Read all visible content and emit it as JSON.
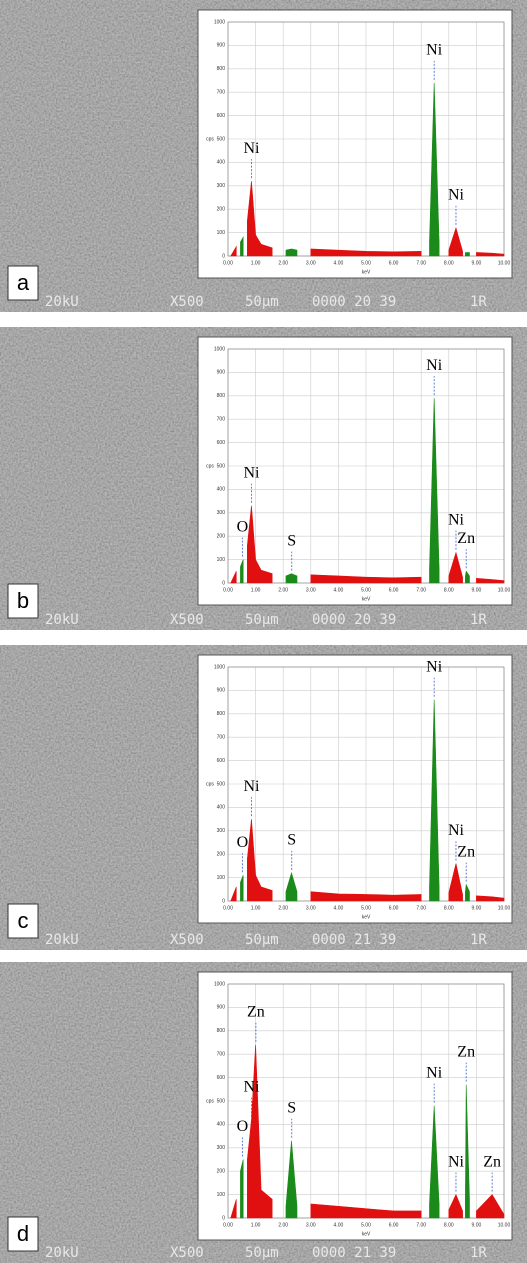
{
  "chart_data": [
    {
      "type": "spectrum",
      "panel": "a",
      "footer": [
        "20kU",
        "X500",
        "50µm",
        "0000 20 39",
        "1R"
      ],
      "xlabel": "keV",
      "ylabel": "cps",
      "xlim": [
        0,
        10
      ],
      "ylim": [
        0,
        1000
      ],
      "xticks": [
        {
          "value": 0,
          "label": "0.00"
        },
        {
          "value": 1,
          "label": "1.00"
        },
        {
          "value": 2,
          "label": "2.00"
        },
        {
          "value": 3,
          "label": "3.00"
        },
        {
          "value": 4,
          "label": "4.00"
        },
        {
          "value": 5,
          "label": "5.00"
        },
        {
          "value": 6,
          "label": "6.00"
        },
        {
          "value": 7,
          "label": "7.00"
        },
        {
          "value": 8,
          "label": "8.00"
        },
        {
          "value": 9,
          "label": "9.00"
        },
        {
          "value": 10,
          "label": "10.00"
        }
      ],
      "yticks": [
        0,
        100,
        200,
        300,
        400,
        500,
        600,
        700,
        800,
        900,
        1000
      ],
      "grid": true,
      "x": [
        0.1,
        0.3,
        0.45,
        0.55,
        0.7,
        0.85,
        1.0,
        1.2,
        1.6,
        2.1,
        2.3,
        2.5,
        3.0,
        4.0,
        5.0,
        6.0,
        7.0,
        7.3,
        7.47,
        7.65,
        8.0,
        8.26,
        8.5,
        8.6,
        8.63,
        8.75,
        9.0,
        9.57,
        10.0
      ],
      "series": [
        {
          "color": "#e01010",
          "values": [
            0,
            40,
            null,
            null,
            150,
            320,
            90,
            50,
            35,
            null,
            null,
            null,
            30,
            25,
            20,
            18,
            20,
            null,
            null,
            null,
            25,
            120,
            20,
            null,
            null,
            null,
            15,
            12,
            8
          ]
        },
        {
          "color": "#1a8a1a",
          "values": [
            null,
            null,
            60,
            80,
            null,
            null,
            null,
            null,
            null,
            25,
            30,
            25,
            null,
            null,
            null,
            null,
            null,
            60,
            740,
            60,
            null,
            null,
            null,
            15,
            15,
            15,
            null,
            null,
            null
          ]
        }
      ],
      "annotations": [
        {
          "text": "Ni",
          "x": 0.85
        },
        {
          "text": "Ni",
          "x": 7.47
        },
        {
          "text": "Ni",
          "x": 8.26
        }
      ]
    },
    {
      "type": "spectrum",
      "panel": "b",
      "footer": [
        "20kU",
        "X500",
        "50µm",
        "0000 20 39",
        "1R"
      ],
      "xlabel": "keV",
      "ylabel": "cps",
      "xlim": [
        0,
        10
      ],
      "ylim": [
        0,
        1000
      ],
      "xticks": [
        {
          "value": 0,
          "label": "0.00"
        },
        {
          "value": 1,
          "label": "1.00"
        },
        {
          "value": 2,
          "label": "2.00"
        },
        {
          "value": 3,
          "label": "3.00"
        },
        {
          "value": 4,
          "label": "4.00"
        },
        {
          "value": 5,
          "label": "5.00"
        },
        {
          "value": 6,
          "label": "6.00"
        },
        {
          "value": 7,
          "label": "7.00"
        },
        {
          "value": 8,
          "label": "8.00"
        },
        {
          "value": 9,
          "label": "9.00"
        },
        {
          "value": 10,
          "label": "10.00"
        }
      ],
      "yticks": [
        0,
        100,
        200,
        300,
        400,
        500,
        600,
        700,
        800,
        900,
        1000
      ],
      "grid": true,
      "x": [
        0.1,
        0.3,
        0.45,
        0.55,
        0.7,
        0.85,
        1.0,
        1.2,
        1.6,
        2.1,
        2.3,
        2.5,
        3.0,
        4.0,
        5.0,
        6.0,
        7.0,
        7.3,
        7.47,
        7.65,
        8.0,
        8.26,
        8.5,
        8.6,
        8.63,
        8.75,
        9.0,
        9.57,
        10.0
      ],
      "series": [
        {
          "color": "#e01010",
          "values": [
            0,
            50,
            null,
            null,
            160,
            330,
            100,
            55,
            40,
            null,
            null,
            null,
            35,
            30,
            25,
            22,
            25,
            null,
            null,
            null,
            30,
            130,
            25,
            null,
            null,
            null,
            20,
            15,
            10
          ]
        },
        {
          "color": "#1a8a1a",
          "values": [
            null,
            null,
            70,
            100,
            null,
            null,
            null,
            null,
            null,
            30,
            40,
            30,
            null,
            null,
            null,
            null,
            null,
            60,
            790,
            60,
            null,
            null,
            null,
            30,
            50,
            30,
            null,
            null,
            null
          ]
        }
      ],
      "annotations": [
        {
          "text": "O",
          "x": 0.52
        },
        {
          "text": "Ni",
          "x": 0.85
        },
        {
          "text": "S",
          "x": 2.31
        },
        {
          "text": "Ni",
          "x": 7.47
        },
        {
          "text": "Ni",
          "x": 8.26
        },
        {
          "text": "Zn",
          "x": 8.63
        }
      ]
    },
    {
      "type": "spectrum",
      "panel": "c",
      "footer": [
        "20kU",
        "X500",
        "50µm",
        "0000 21 39",
        "1R"
      ],
      "xlabel": "keV",
      "ylabel": "cps",
      "xlim": [
        0,
        10
      ],
      "ylim": [
        0,
        1000
      ],
      "xticks": [
        {
          "value": 0,
          "label": "0.00"
        },
        {
          "value": 1,
          "label": "1.00"
        },
        {
          "value": 2,
          "label": "2.00"
        },
        {
          "value": 3,
          "label": "3.00"
        },
        {
          "value": 4,
          "label": "4.00"
        },
        {
          "value": 5,
          "label": "5.00"
        },
        {
          "value": 6,
          "label": "6.00"
        },
        {
          "value": 7,
          "label": "7.00"
        },
        {
          "value": 8,
          "label": "8.00"
        },
        {
          "value": 9,
          "label": "9.00"
        },
        {
          "value": 10,
          "label": "10.00"
        }
      ],
      "yticks": [
        0,
        100,
        200,
        300,
        400,
        500,
        600,
        700,
        800,
        900,
        1000
      ],
      "grid": true,
      "x": [
        0.1,
        0.3,
        0.45,
        0.55,
        0.7,
        0.85,
        1.0,
        1.2,
        1.6,
        2.1,
        2.3,
        2.5,
        3.0,
        4.0,
        5.0,
        6.0,
        7.0,
        7.3,
        7.47,
        7.65,
        8.0,
        8.26,
        8.5,
        8.6,
        8.63,
        8.75,
        9.0,
        9.57,
        10.0
      ],
      "series": [
        {
          "color": "#e01010",
          "values": [
            0,
            60,
            null,
            null,
            180,
            350,
            110,
            60,
            45,
            null,
            null,
            null,
            40,
            30,
            28,
            25,
            28,
            null,
            null,
            null,
            35,
            160,
            28,
            null,
            null,
            null,
            22,
            18,
            12
          ]
        },
        {
          "color": "#1a8a1a",
          "values": [
            null,
            null,
            80,
            110,
            null,
            null,
            null,
            null,
            null,
            40,
            120,
            40,
            null,
            null,
            null,
            null,
            null,
            60,
            860,
            60,
            null,
            null,
            null,
            40,
            70,
            40,
            null,
            null,
            null
          ]
        }
      ],
      "annotations": [
        {
          "text": "O",
          "x": 0.52
        },
        {
          "text": "Ni",
          "x": 0.85
        },
        {
          "text": "S",
          "x": 2.31
        },
        {
          "text": "Ni",
          "x": 7.47
        },
        {
          "text": "Ni",
          "x": 8.26
        },
        {
          "text": "Zn",
          "x": 8.63
        }
      ]
    },
    {
      "type": "spectrum",
      "panel": "d",
      "footer": [
        "20kU",
        "X500",
        "50µm",
        "0000 21 39",
        "1R"
      ],
      "xlabel": "keV",
      "ylabel": "cps",
      "xlim": [
        0,
        10
      ],
      "ylim": [
        0,
        1000
      ],
      "xticks": [
        {
          "value": 0,
          "label": "0.00"
        },
        {
          "value": 1,
          "label": "1.00"
        },
        {
          "value": 2,
          "label": "2.00"
        },
        {
          "value": 3,
          "label": "3.00"
        },
        {
          "value": 4,
          "label": "4.00"
        },
        {
          "value": 5,
          "label": "5.00"
        },
        {
          "value": 6,
          "label": "6.00"
        },
        {
          "value": 7,
          "label": "7.00"
        },
        {
          "value": 8,
          "label": "8.00"
        },
        {
          "value": 9,
          "label": "9.00"
        },
        {
          "value": 10,
          "label": "10.00"
        }
      ],
      "yticks": [
        0,
        100,
        200,
        300,
        400,
        500,
        600,
        700,
        800,
        900,
        1000
      ],
      "grid": true,
      "x": [
        0.1,
        0.3,
        0.45,
        0.55,
        0.7,
        0.85,
        1.0,
        1.2,
        1.6,
        2.1,
        2.3,
        2.5,
        3.0,
        4.0,
        5.0,
        6.0,
        7.0,
        7.3,
        7.47,
        7.65,
        8.0,
        8.26,
        8.5,
        8.6,
        8.63,
        8.75,
        9.0,
        9.57,
        10.0
      ],
      "series": [
        {
          "color": "#e01010",
          "values": [
            0,
            80,
            null,
            null,
            250,
            420,
            740,
            120,
            80,
            null,
            null,
            null,
            60,
            50,
            40,
            30,
            30,
            null,
            null,
            null,
            35,
            100,
            30,
            null,
            null,
            null,
            30,
            100,
            15
          ]
        },
        {
          "color": "#1a8a1a",
          "values": [
            null,
            null,
            200,
            250,
            null,
            null,
            null,
            null,
            null,
            50,
            330,
            50,
            null,
            null,
            null,
            null,
            null,
            60,
            480,
            60,
            null,
            null,
            null,
            80,
            570,
            80,
            null,
            null,
            null
          ]
        }
      ],
      "annotations": [
        {
          "text": "O",
          "x": 0.52
        },
        {
          "text": "Ni",
          "x": 0.85
        },
        {
          "text": "Zn",
          "x": 1.01
        },
        {
          "text": "S",
          "x": 2.31
        },
        {
          "text": "Ni",
          "x": 7.47
        },
        {
          "text": "Ni",
          "x": 8.26
        },
        {
          "text": "Zn",
          "x": 8.63
        },
        {
          "text": "Zn",
          "x": 9.57
        }
      ]
    }
  ]
}
